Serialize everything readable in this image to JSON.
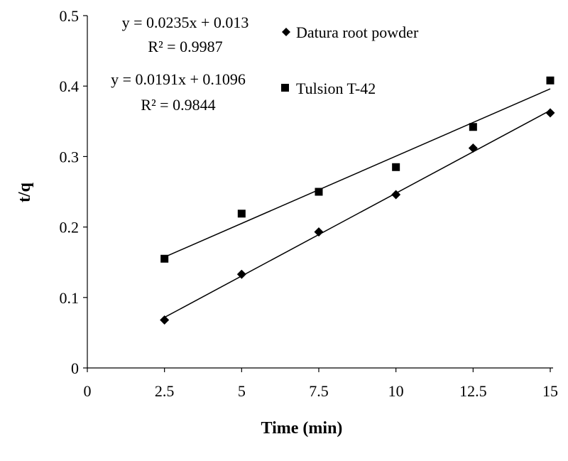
{
  "chart_data": {
    "type": "scatter",
    "title": "",
    "xlabel": "Time (min)",
    "ylabel": "t/q",
    "xlim": [
      0,
      15
    ],
    "ylim": [
      0,
      0.5
    ],
    "xticks": [
      0,
      2.5,
      5,
      7.5,
      10,
      12.5,
      15
    ],
    "xtick_labels": [
      "0",
      "2.5",
      "5",
      "7.5",
      "10",
      "12.5",
      "15"
    ],
    "yticks": [
      0,
      0.1,
      0.2,
      0.3,
      0.4,
      0.5
    ],
    "ytick_labels": [
      "0",
      "0.1",
      "0.2",
      "0.3",
      "0.4",
      "0.5"
    ],
    "grid": false,
    "legend_position": "top-right",
    "series": [
      {
        "name": "Datura root powder",
        "marker": "diamond",
        "color": "#000000",
        "x": [
          2.5,
          5,
          7.5,
          10,
          12.5,
          15
        ],
        "y": [
          0.068,
          0.133,
          0.193,
          0.246,
          0.312,
          0.362
        ],
        "trendline": {
          "slope": 0.0235,
          "intercept": 0.013
        },
        "equation": "y = 0.0235x + 0.013",
        "r2": "R² = 0.9987"
      },
      {
        "name": "Tulsion T-42",
        "marker": "square",
        "color": "#000000",
        "x": [
          2.5,
          5,
          7.5,
          10,
          12.5,
          15
        ],
        "y": [
          0.155,
          0.219,
          0.25,
          0.285,
          0.342,
          0.408
        ],
        "trendline": {
          "slope": 0.0191,
          "intercept": 0.1096
        },
        "equation": "y = 0.0191x + 0.1096",
        "r2": "R² = 0.9844"
      }
    ]
  }
}
